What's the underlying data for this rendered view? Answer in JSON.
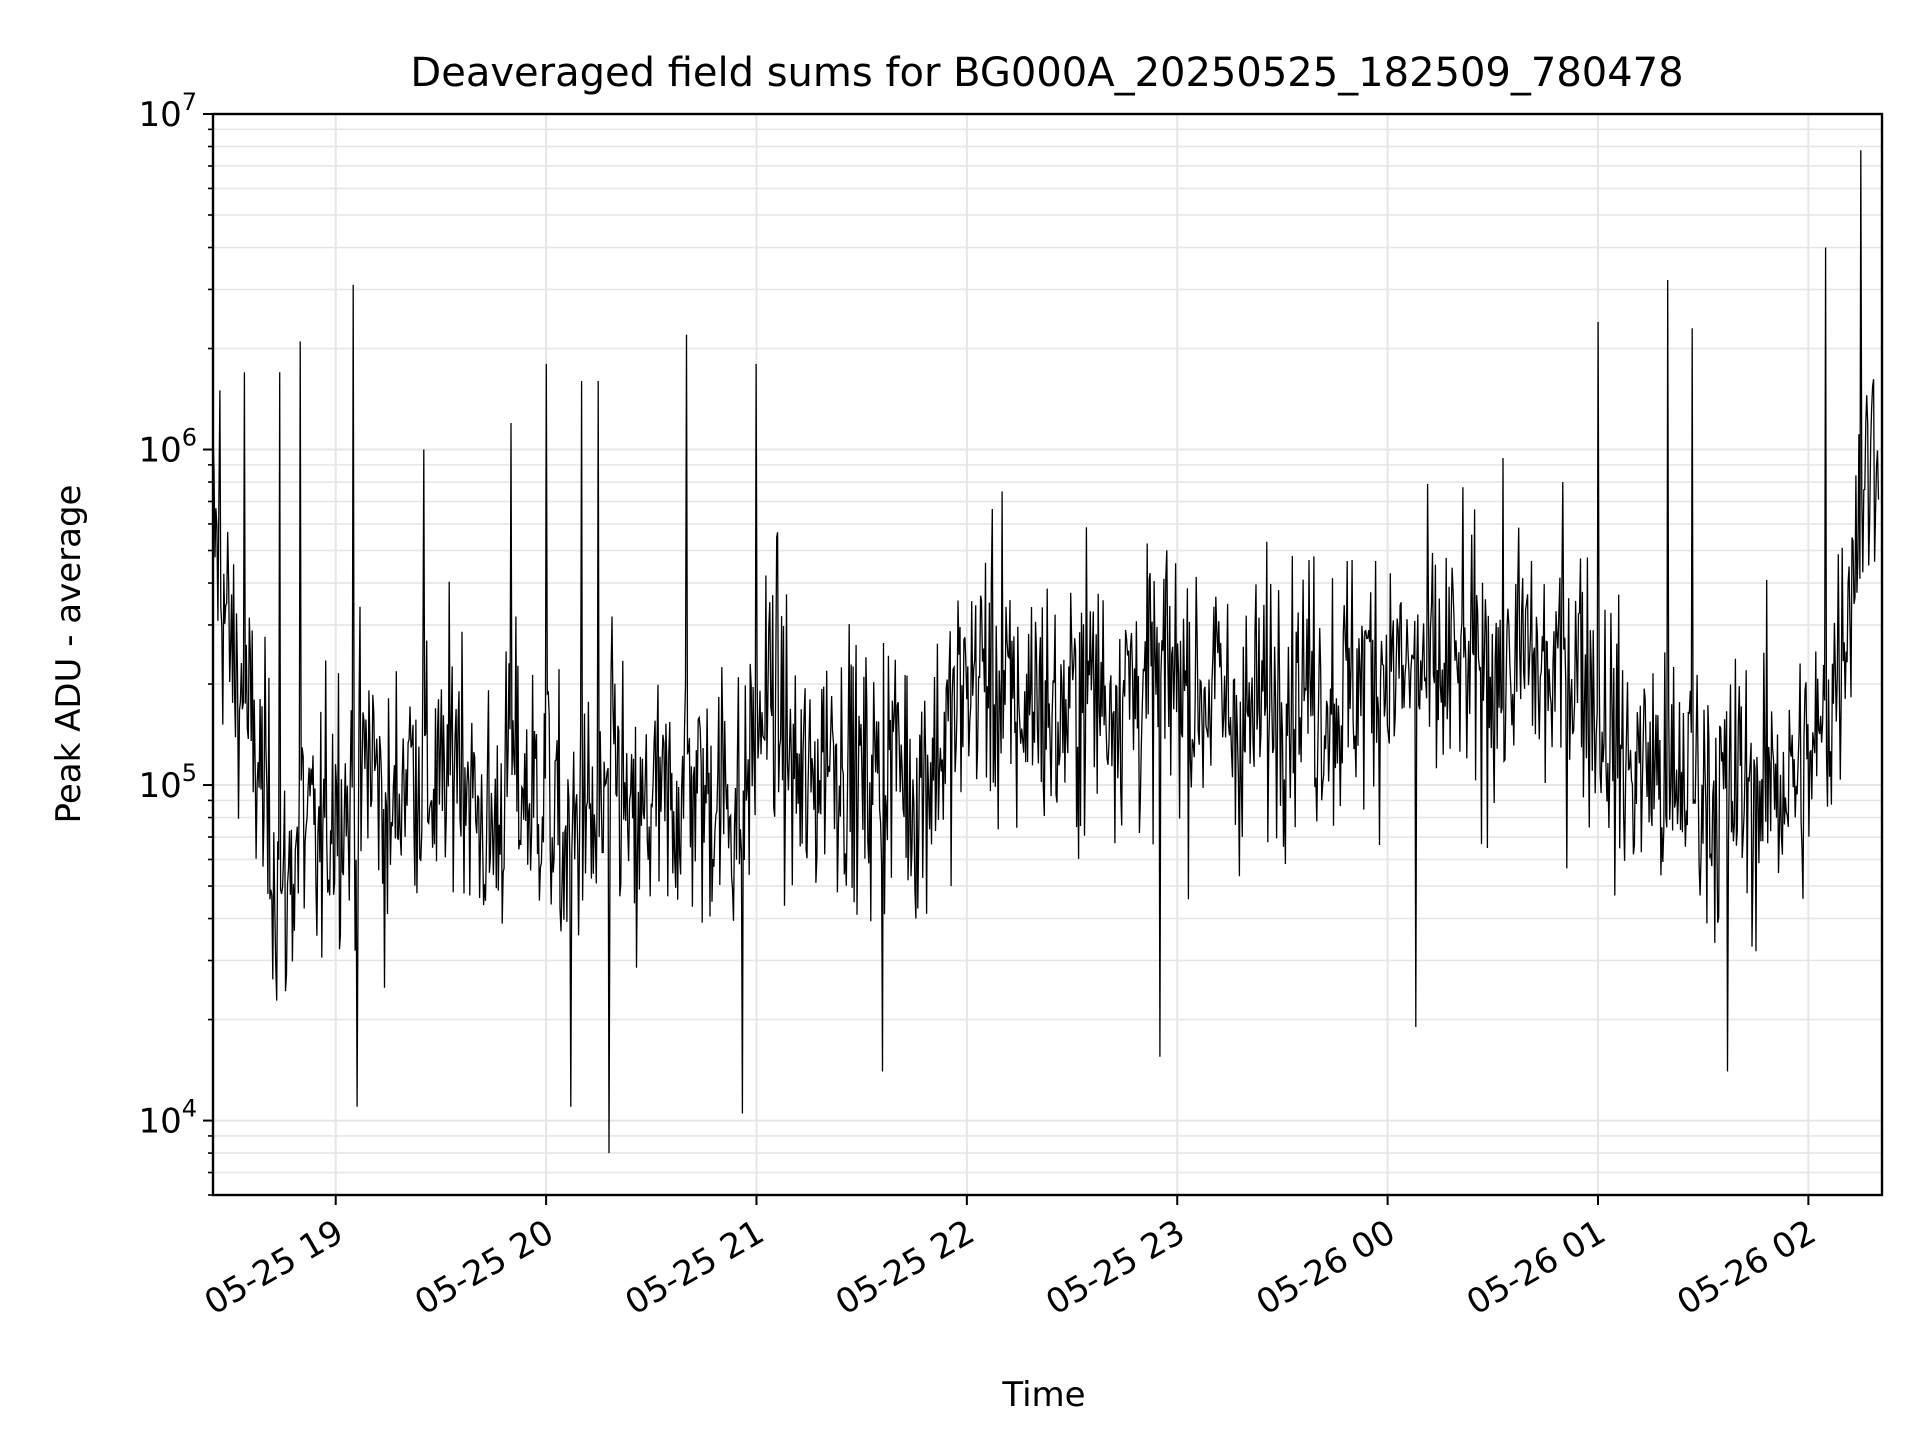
{
  "chart_data": {
    "type": "line",
    "title": "Deaveraged field sums for BG000A_20250525_182509_780478",
    "xlabel": "Time",
    "ylabel": "Peak ADU - average",
    "yscale": "log",
    "ylim": [
      6000,
      10000000
    ],
    "xlim": [
      "2025-05-25 18:25",
      "2025-05-26 02:21"
    ],
    "x_ticks": [
      {
        "t": "2025-05-25 19:00",
        "label": "05-25 19"
      },
      {
        "t": "2025-05-25 20:00",
        "label": "05-25 20"
      },
      {
        "t": "2025-05-25 21:00",
        "label": "05-25 21"
      },
      {
        "t": "2025-05-25 22:00",
        "label": "05-25 22"
      },
      {
        "t": "2025-05-25 23:00",
        "label": "05-25 23"
      },
      {
        "t": "2025-05-26 00:00",
        "label": "05-26 00"
      },
      {
        "t": "2025-05-26 01:00",
        "label": "05-26 01"
      },
      {
        "t": "2025-05-26 02:00",
        "label": "05-26 02"
      }
    ],
    "y_ticks": [
      {
        "value": 10000,
        "base": "10",
        "exp": "4"
      },
      {
        "value": 100000,
        "base": "10",
        "exp": "5"
      },
      {
        "value": 1000000,
        "base": "10",
        "exp": "6"
      },
      {
        "value": 10000000,
        "base": "10",
        "exp": "7"
      }
    ],
    "grid": true,
    "line_color": "#000000",
    "series": [
      {
        "x": [
          "2025-05-25 18:25",
          "2025-05-25 18:30",
          "2025-05-25 18:35",
          "2025-05-25 18:40",
          "2025-05-25 18:45",
          "2025-05-25 18:50",
          "2025-05-25 18:55",
          "2025-05-25 19:00",
          "2025-05-25 19:05",
          "2025-05-25 19:10",
          "2025-05-25 19:15",
          "2025-05-25 19:20",
          "2025-05-25 19:25",
          "2025-05-25 19:30",
          "2025-05-25 19:35",
          "2025-05-25 19:40",
          "2025-05-25 19:45",
          "2025-05-25 19:50",
          "2025-05-25 19:55",
          "2025-05-25 20:00",
          "2025-05-25 20:05",
          "2025-05-25 20:10",
          "2025-05-25 20:15",
          "2025-05-25 20:20",
          "2025-05-25 20:25",
          "2025-05-25 20:30",
          "2025-05-25 20:35",
          "2025-05-25 20:40",
          "2025-05-25 20:45",
          "2025-05-25 20:50",
          "2025-05-25 20:55",
          "2025-05-25 21:00",
          "2025-05-25 21:05",
          "2025-05-25 21:10",
          "2025-05-25 21:15",
          "2025-05-25 21:20",
          "2025-05-25 21:25",
          "2025-05-25 21:30",
          "2025-05-25 21:35",
          "2025-05-25 21:40",
          "2025-05-25 21:45",
          "2025-05-25 21:50",
          "2025-05-25 21:55",
          "2025-05-25 22:00",
          "2025-05-25 22:05",
          "2025-05-25 22:10",
          "2025-05-25 22:15",
          "2025-05-25 22:20",
          "2025-05-25 22:25",
          "2025-05-25 22:30",
          "2025-05-25 22:35",
          "2025-05-25 22:40",
          "2025-05-25 22:45",
          "2025-05-25 22:50",
          "2025-05-25 22:55",
          "2025-05-25 23:00",
          "2025-05-25 23:05",
          "2025-05-25 23:10",
          "2025-05-25 23:15",
          "2025-05-25 23:20",
          "2025-05-25 23:25",
          "2025-05-25 23:30",
          "2025-05-25 23:35",
          "2025-05-25 23:40",
          "2025-05-25 23:45",
          "2025-05-25 23:50",
          "2025-05-25 23:55",
          "2025-05-26 00:00",
          "2025-05-26 00:05",
          "2025-05-26 00:10",
          "2025-05-26 00:15",
          "2025-05-26 00:20",
          "2025-05-26 00:25",
          "2025-05-26 00:30",
          "2025-05-26 00:35",
          "2025-05-26 00:40",
          "2025-05-26 00:45",
          "2025-05-26 00:50",
          "2025-05-26 00:55",
          "2025-05-26 01:00",
          "2025-05-26 01:05",
          "2025-05-26 01:10",
          "2025-05-26 01:15",
          "2025-05-26 01:20",
          "2025-05-26 01:25",
          "2025-05-26 01:30",
          "2025-05-26 01:35",
          "2025-05-26 01:40",
          "2025-05-26 01:45",
          "2025-05-26 01:50",
          "2025-05-26 01:55",
          "2025-05-26 02:00",
          "2025-05-26 02:05",
          "2025-05-26 02:10",
          "2025-05-26 02:15",
          "2025-05-26 02:20"
        ],
        "y": [
          600000,
          250000,
          150000,
          90000,
          40000,
          80000,
          60000,
          100000,
          80000,
          130000,
          70000,
          120000,
          110000,
          90000,
          150000,
          80000,
          70000,
          120000,
          90000,
          100000,
          60000,
          80000,
          70000,
          120000,
          60000,
          90000,
          80000,
          110000,
          90000,
          100000,
          80000,
          150000,
          200000,
          110000,
          90000,
          140000,
          120000,
          100000,
          110000,
          130000,
          90000,
          120000,
          140000,
          200000,
          230000,
          180000,
          160000,
          200000,
          150000,
          170000,
          210000,
          180000,
          200000,
          190000,
          210000,
          220000,
          180000,
          200000,
          160000,
          150000,
          180000,
          200000,
          210000,
          190000,
          180000,
          200000,
          220000,
          230000,
          210000,
          220000,
          200000,
          240000,
          210000,
          230000,
          220000,
          250000,
          200000,
          220000,
          240000,
          180000,
          130000,
          110000,
          120000,
          90000,
          110000,
          100000,
          90000,
          100000,
          90000,
          110000,
          100000,
          110000,
          150000,
          300000,
          700000,
          1200000
        ],
        "spikes": [
          {
            "t": "2025-05-25 18:27",
            "y": 1500000
          },
          {
            "t": "2025-05-25 18:34",
            "y": 1700000
          },
          {
            "t": "2025-05-25 18:44",
            "y": 1700000
          },
          {
            "t": "2025-05-25 18:50",
            "y": 2100000
          },
          {
            "t": "2025-05-25 19:05",
            "y": 3100000
          },
          {
            "t": "2025-05-25 19:06",
            "y": 11000
          },
          {
            "t": "2025-05-25 19:25",
            "y": 1000000
          },
          {
            "t": "2025-05-25 19:50",
            "y": 1200000
          },
          {
            "t": "2025-05-25 20:00",
            "y": 1800000
          },
          {
            "t": "2025-05-25 20:07",
            "y": 11000
          },
          {
            "t": "2025-05-25 20:10",
            "y": 1600000
          },
          {
            "t": "2025-05-25 20:15",
            "y": 1600000
          },
          {
            "t": "2025-05-25 20:18",
            "y": 8000
          },
          {
            "t": "2025-05-25 20:40",
            "y": 2200000
          },
          {
            "t": "2025-05-25 20:56",
            "y": 10500
          },
          {
            "t": "2025-05-25 21:00",
            "y": 1800000
          },
          {
            "t": "2025-05-25 21:36",
            "y": 14000
          },
          {
            "t": "2025-05-25 22:10",
            "y": 750000
          },
          {
            "t": "2025-05-25 22:55",
            "y": 15500
          },
          {
            "t": "2025-05-26 00:08",
            "y": 19000
          },
          {
            "t": "2025-05-26 00:50",
            "y": 800000
          },
          {
            "t": "2025-05-26 01:00",
            "y": 2400000
          },
          {
            "t": "2025-05-26 01:20",
            "y": 3200000
          },
          {
            "t": "2025-05-26 01:27",
            "y": 2300000
          },
          {
            "t": "2025-05-26 01:37",
            "y": 14000
          },
          {
            "t": "2025-05-26 02:05",
            "y": 4000000
          },
          {
            "t": "2025-05-26 02:15",
            "y": 7800000
          }
        ]
      }
    ]
  }
}
